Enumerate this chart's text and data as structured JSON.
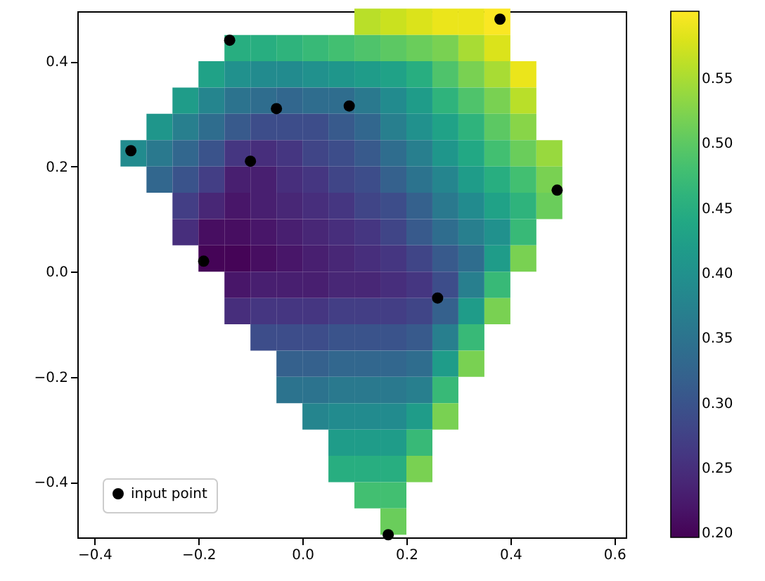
{
  "chart_data": {
    "type": "heatmap",
    "x": [
      -0.325,
      -0.275,
      -0.225,
      -0.175,
      -0.125,
      -0.075,
      -0.025,
      0.025,
      0.075,
      0.125,
      0.175,
      0.225,
      0.275,
      0.325,
      0.375,
      0.425,
      0.475
    ],
    "y": [
      0.475,
      0.425,
      0.375,
      0.325,
      0.275,
      0.225,
      0.175,
      0.125,
      0.075,
      0.025,
      -0.025,
      -0.075,
      -0.125,
      -0.175,
      -0.225,
      -0.275,
      -0.325,
      -0.375,
      -0.425,
      -0.475
    ],
    "cells": [
      [
        null,
        null,
        null,
        null,
        null,
        null,
        null,
        null,
        null,
        0.56,
        0.57,
        0.58,
        0.59,
        0.59,
        0.6,
        null,
        null
      ],
      [
        null,
        null,
        null,
        null,
        0.45,
        0.45,
        0.46,
        0.47,
        0.48,
        0.49,
        0.5,
        0.51,
        0.52,
        0.55,
        0.58,
        null,
        null
      ],
      [
        null,
        null,
        null,
        0.43,
        0.4,
        0.39,
        0.39,
        0.4,
        0.41,
        0.42,
        0.43,
        0.45,
        0.49,
        0.52,
        0.55,
        0.59,
        null
      ],
      [
        null,
        null,
        0.42,
        0.38,
        0.35,
        0.34,
        0.33,
        0.34,
        0.34,
        0.36,
        0.39,
        0.42,
        0.46,
        0.49,
        0.52,
        0.56,
        null
      ],
      [
        null,
        0.41,
        0.37,
        0.34,
        0.31,
        0.29,
        0.29,
        0.29,
        0.31,
        0.33,
        0.37,
        0.4,
        0.43,
        0.46,
        0.5,
        0.53,
        null
      ],
      [
        0.39,
        0.36,
        0.33,
        0.3,
        0.26,
        0.25,
        0.26,
        0.28,
        0.29,
        0.31,
        0.34,
        0.37,
        0.41,
        0.44,
        0.48,
        0.51,
        0.54
      ],
      [
        null,
        0.33,
        0.3,
        0.27,
        0.23,
        0.23,
        0.25,
        0.26,
        0.28,
        0.29,
        0.32,
        0.35,
        0.38,
        0.42,
        0.45,
        0.48,
        0.52
      ],
      [
        null,
        null,
        0.27,
        0.24,
        0.22,
        0.23,
        0.24,
        0.25,
        0.26,
        0.28,
        0.29,
        0.32,
        0.36,
        0.39,
        0.43,
        0.46,
        0.51
      ],
      [
        null,
        null,
        0.25,
        0.21,
        0.21,
        0.22,
        0.23,
        0.24,
        0.25,
        0.26,
        0.28,
        0.31,
        0.34,
        0.37,
        0.4,
        0.47,
        null
      ],
      [
        null,
        null,
        null,
        0.2,
        0.2,
        0.21,
        0.22,
        0.23,
        0.24,
        0.25,
        0.26,
        0.28,
        0.31,
        0.34,
        0.42,
        0.52,
        null
      ],
      [
        null,
        null,
        null,
        null,
        0.22,
        0.23,
        0.23,
        0.23,
        0.24,
        0.24,
        0.25,
        0.26,
        0.29,
        0.37,
        0.47,
        null,
        null
      ],
      [
        null,
        null,
        null,
        null,
        0.25,
        0.26,
        0.26,
        0.26,
        0.27,
        0.27,
        0.27,
        0.28,
        0.32,
        0.42,
        0.52,
        null,
        null
      ],
      [
        null,
        null,
        null,
        null,
        null,
        0.29,
        0.29,
        0.29,
        0.3,
        0.3,
        0.3,
        0.31,
        0.37,
        0.47,
        null,
        null,
        null
      ],
      [
        null,
        null,
        null,
        null,
        null,
        null,
        0.32,
        0.32,
        0.33,
        0.33,
        0.33,
        0.34,
        0.42,
        0.52,
        null,
        null,
        null
      ],
      [
        null,
        null,
        null,
        null,
        null,
        null,
        0.35,
        0.35,
        0.36,
        0.36,
        0.36,
        0.37,
        0.47,
        null,
        null,
        null,
        null
      ],
      [
        null,
        null,
        null,
        null,
        null,
        null,
        null,
        0.38,
        0.39,
        0.39,
        0.39,
        0.42,
        0.52,
        null,
        null,
        null,
        null
      ],
      [
        null,
        null,
        null,
        null,
        null,
        null,
        null,
        null,
        0.42,
        0.42,
        0.42,
        0.47,
        null,
        null,
        null,
        null,
        null
      ],
      [
        null,
        null,
        null,
        null,
        null,
        null,
        null,
        null,
        0.45,
        0.45,
        0.45,
        0.52,
        null,
        null,
        null,
        null,
        null
      ],
      [
        null,
        null,
        null,
        null,
        null,
        null,
        null,
        null,
        null,
        0.48,
        0.48,
        null,
        null,
        null,
        null,
        null,
        null
      ],
      [
        null,
        null,
        null,
        null,
        null,
        null,
        null,
        null,
        null,
        null,
        0.51,
        null,
        null,
        null,
        null,
        null,
        null
      ]
    ],
    "clim": [
      0.197,
      0.602
    ],
    "cticks": [
      {
        "value": 0.2,
        "label": "0.20"
      },
      {
        "value": 0.25,
        "label": "0.25"
      },
      {
        "value": 0.3,
        "label": "0.30"
      },
      {
        "value": 0.35,
        "label": "0.35"
      },
      {
        "value": 0.4,
        "label": "0.40"
      },
      {
        "value": 0.45,
        "label": "0.45"
      },
      {
        "value": 0.5,
        "label": "0.50"
      },
      {
        "value": 0.55,
        "label": "0.55"
      }
    ],
    "xlim": [
      -0.433,
      0.622
    ],
    "ylim": [
      -0.505,
      0.495
    ],
    "xticks": [
      {
        "value": -0.4,
        "label": "−0.4"
      },
      {
        "value": -0.2,
        "label": "−0.2"
      },
      {
        "value": 0,
        "label": "0.0"
      },
      {
        "value": 0.2,
        "label": "0.2"
      },
      {
        "value": 0.4,
        "label": "0.4"
      },
      {
        "value": 0.6,
        "label": "0.6"
      }
    ],
    "yticks": [
      {
        "value": -0.4,
        "label": "−0.4"
      },
      {
        "value": -0.2,
        "label": "−0.2"
      },
      {
        "value": 0,
        "label": "0.0"
      },
      {
        "value": 0.2,
        "label": "0.2"
      },
      {
        "value": 0.4,
        "label": "0.4"
      }
    ],
    "series": [
      {
        "type": "scatter",
        "name": "input point",
        "color": "#000000",
        "x": [
          -0.14,
          0.38,
          -0.33,
          -0.05,
          0.09,
          -0.1,
          0.49,
          -0.19,
          0.26,
          0.165
        ],
        "values": [
          0.44,
          0.48,
          0.23,
          0.31,
          0.315,
          0.21,
          0.155,
          0.02,
          -0.05,
          -0.5
        ]
      }
    ],
    "marker": "circle",
    "legend": "bottom left"
  }
}
